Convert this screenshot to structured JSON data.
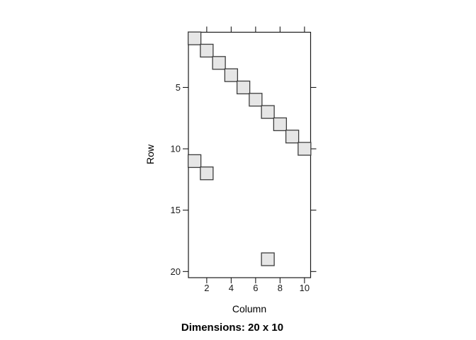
{
  "chart_data": {
    "type": "heatmap",
    "title": "",
    "xlabel": "Column",
    "ylabel": "Row",
    "caption": "Dimensions: 20 x 10",
    "n_rows": 20,
    "n_cols": 10,
    "xlim": [
      0.5,
      10.5
    ],
    "ylim": [
      0.5,
      20.5
    ],
    "y_reversed": true,
    "grid": false,
    "legend": "none",
    "x_ticks": [
      2,
      4,
      6,
      8,
      10
    ],
    "y_ticks": [
      5,
      10,
      15,
      20
    ],
    "cells": [
      [
        1,
        1
      ],
      [
        2,
        2
      ],
      [
        3,
        3
      ],
      [
        4,
        4
      ],
      [
        5,
        5
      ],
      [
        6,
        6
      ],
      [
        7,
        7
      ],
      [
        8,
        8
      ],
      [
        9,
        9
      ],
      [
        10,
        10
      ],
      [
        1,
        11
      ],
      [
        2,
        12
      ],
      [
        7,
        19
      ]
    ],
    "colors": {
      "cell_fill": "#e6e6e6",
      "cell_stroke": "#3d3d3d",
      "axis": "#1a1a1a",
      "background": "#ffffff"
    }
  }
}
